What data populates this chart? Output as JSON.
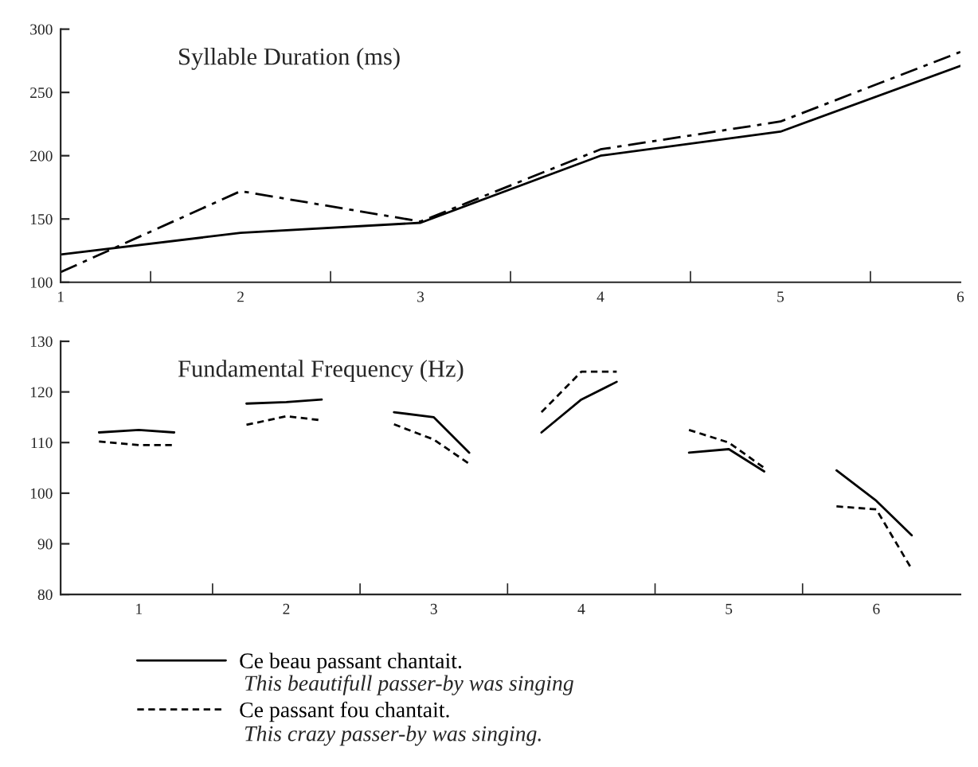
{
  "chart_data": [
    {
      "type": "line",
      "title": "Syllable Duration (ms)",
      "x": [
        1,
        2,
        3,
        4,
        5,
        6
      ],
      "xlim": [
        1,
        6
      ],
      "xticks": [
        1,
        {
          "value": 1.5,
          "label": null
        },
        2,
        {
          "value": 2.5,
          "label": null
        },
        3,
        {
          "value": 3.5,
          "label": null
        },
        4,
        {
          "value": 4.5,
          "label": null
        },
        5,
        {
          "value": 5.5,
          "label": null
        },
        6
      ],
      "ylim": [
        100,
        300
      ],
      "yticks": [
        100,
        150,
        200,
        250,
        300
      ],
      "grid": false,
      "legend": false,
      "series": [
        {
          "color": "#000000",
          "line_style": "solid",
          "values": [
            122,
            139,
            147,
            200,
            219,
            271
          ]
        },
        {
          "color": "#000000",
          "line_style": "dashdot",
          "values": [
            108,
            172,
            148,
            205,
            227,
            282
          ]
        }
      ]
    },
    {
      "type": "line",
      "title": "Fundamental Frequency (Hz)",
      "xlim": [
        0.47,
        6.57
      ],
      "xticks": [
        1,
        {
          "value": 1.5,
          "label": null
        },
        2,
        {
          "value": 2.5,
          "label": null
        },
        3,
        {
          "value": 3.5,
          "label": null
        },
        4,
        {
          "value": 4.5,
          "label": null
        },
        5,
        {
          "value": 5.5,
          "label": null
        },
        6
      ],
      "ylim": [
        80,
        130
      ],
      "yticks": [
        80,
        90,
        100,
        110,
        120,
        130
      ],
      "grid": false,
      "legend": "bottom",
      "annotations": [
        "This beautifull passer-by was singing",
        "This crazy passer-by was singing."
      ],
      "series": [
        {
          "name": "Ce beau passant chantait.",
          "color": "#000000",
          "line_style": "solid",
          "x": [
            0.73,
            1.0,
            1.24,
            1.5,
            1.73,
            2.0,
            2.24,
            2.5,
            2.73,
            3.0,
            3.24,
            3.5,
            3.73,
            4.0,
            4.24,
            4.5,
            4.73,
            5.0,
            5.24,
            5.5,
            5.73,
            6.0,
            6.24
          ],
          "values": [
            112,
            112.5,
            112,
            null,
            117.7,
            118,
            118.5,
            null,
            116,
            115,
            108,
            null,
            112,
            118.5,
            122,
            null,
            108,
            108.7,
            104.3,
            null,
            104.5,
            98.5,
            91.7
          ]
        },
        {
          "name": "Ce passant fou chantait.",
          "color": "#000000",
          "line_style": "dashed",
          "x": [
            0.73,
            1.0,
            1.24,
            1.5,
            1.73,
            2.0,
            2.24,
            2.5,
            2.73,
            3.0,
            3.24,
            3.5,
            3.73,
            4.0,
            4.24,
            4.5,
            4.73,
            5.0,
            5.24,
            5.5,
            5.73,
            6.0,
            6.24
          ],
          "values": [
            110.2,
            109.5,
            109.5,
            null,
            113.5,
            115.2,
            114.4,
            null,
            113.6,
            110.6,
            105.8,
            null,
            116,
            124,
            124,
            null,
            112.5,
            110,
            105,
            null,
            97.4,
            96.8,
            85
          ]
        }
      ]
    }
  ]
}
